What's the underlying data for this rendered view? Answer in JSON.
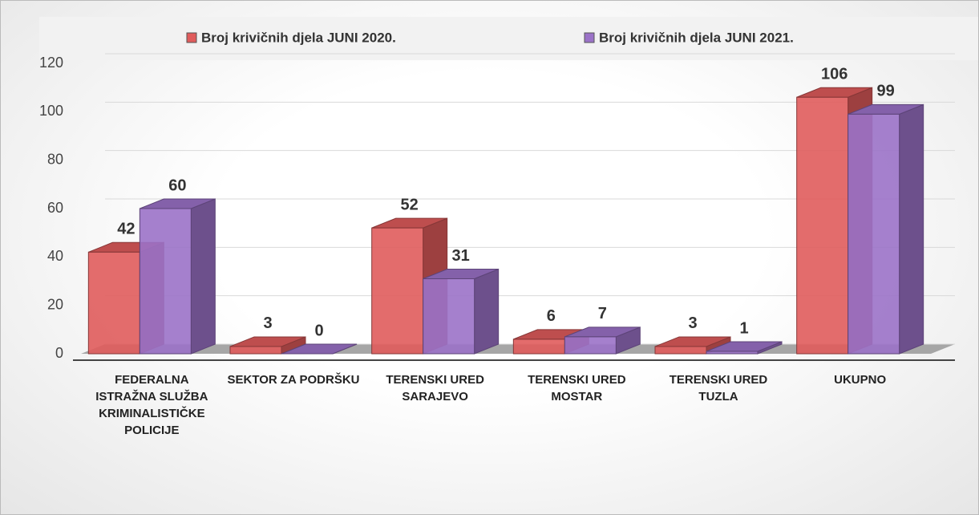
{
  "chart_data": {
    "type": "bar3d",
    "categories": [
      "FEDERALNA ISTRAŽNA SLUŽBA KRIMINALISTIČKE POLICIJE",
      "SEKTOR ZA PODRŠKU",
      "TERENSKI URED SARAJEVO",
      "TERENSKI URED MOSTAR",
      "TERENSKI URED TUZLA",
      "UKUPNO"
    ],
    "series": [
      {
        "name": "Broj krivičnih djela JUNI 2020.",
        "color": "#e05c5c",
        "values": [
          42,
          3,
          52,
          6,
          3,
          106
        ]
      },
      {
        "name": "Broj krivičnih djela JUNI 2021.",
        "color": "#9b72c8",
        "values": [
          60,
          0,
          31,
          7,
          1,
          99
        ]
      }
    ],
    "ylim": [
      0,
      120
    ],
    "yticks": [
      0,
      20,
      40,
      60,
      80,
      100,
      120
    ],
    "grid": true,
    "legend": "top"
  }
}
